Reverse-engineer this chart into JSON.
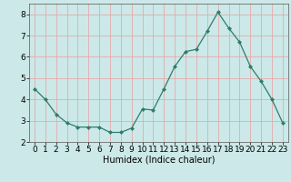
{
  "x": [
    0,
    1,
    2,
    3,
    4,
    5,
    6,
    7,
    8,
    9,
    10,
    11,
    12,
    13,
    14,
    15,
    16,
    17,
    18,
    19,
    20,
    21,
    22,
    23
  ],
  "y": [
    4.5,
    4.0,
    3.3,
    2.9,
    2.7,
    2.7,
    2.7,
    2.45,
    2.45,
    2.65,
    3.55,
    3.5,
    4.5,
    5.55,
    6.25,
    6.35,
    7.2,
    8.1,
    7.35,
    6.7,
    5.55,
    4.85,
    4.0,
    2.9
  ],
  "line_color": "#2e7d6e",
  "marker": "D",
  "marker_size": 2,
  "bg_color": "#cce8e8",
  "grid_color": "#e8a0a0",
  "xlabel": "Humidex (Indice chaleur)",
  "xlabel_fontsize": 7,
  "xlim": [
    -0.5,
    23.5
  ],
  "ylim": [
    2.0,
    8.5
  ],
  "yticks": [
    2,
    3,
    4,
    5,
    6,
    7,
    8
  ],
  "xticks": [
    0,
    1,
    2,
    3,
    4,
    5,
    6,
    7,
    8,
    9,
    10,
    11,
    12,
    13,
    14,
    15,
    16,
    17,
    18,
    19,
    20,
    21,
    22,
    23
  ],
  "tick_fontsize": 6.5
}
